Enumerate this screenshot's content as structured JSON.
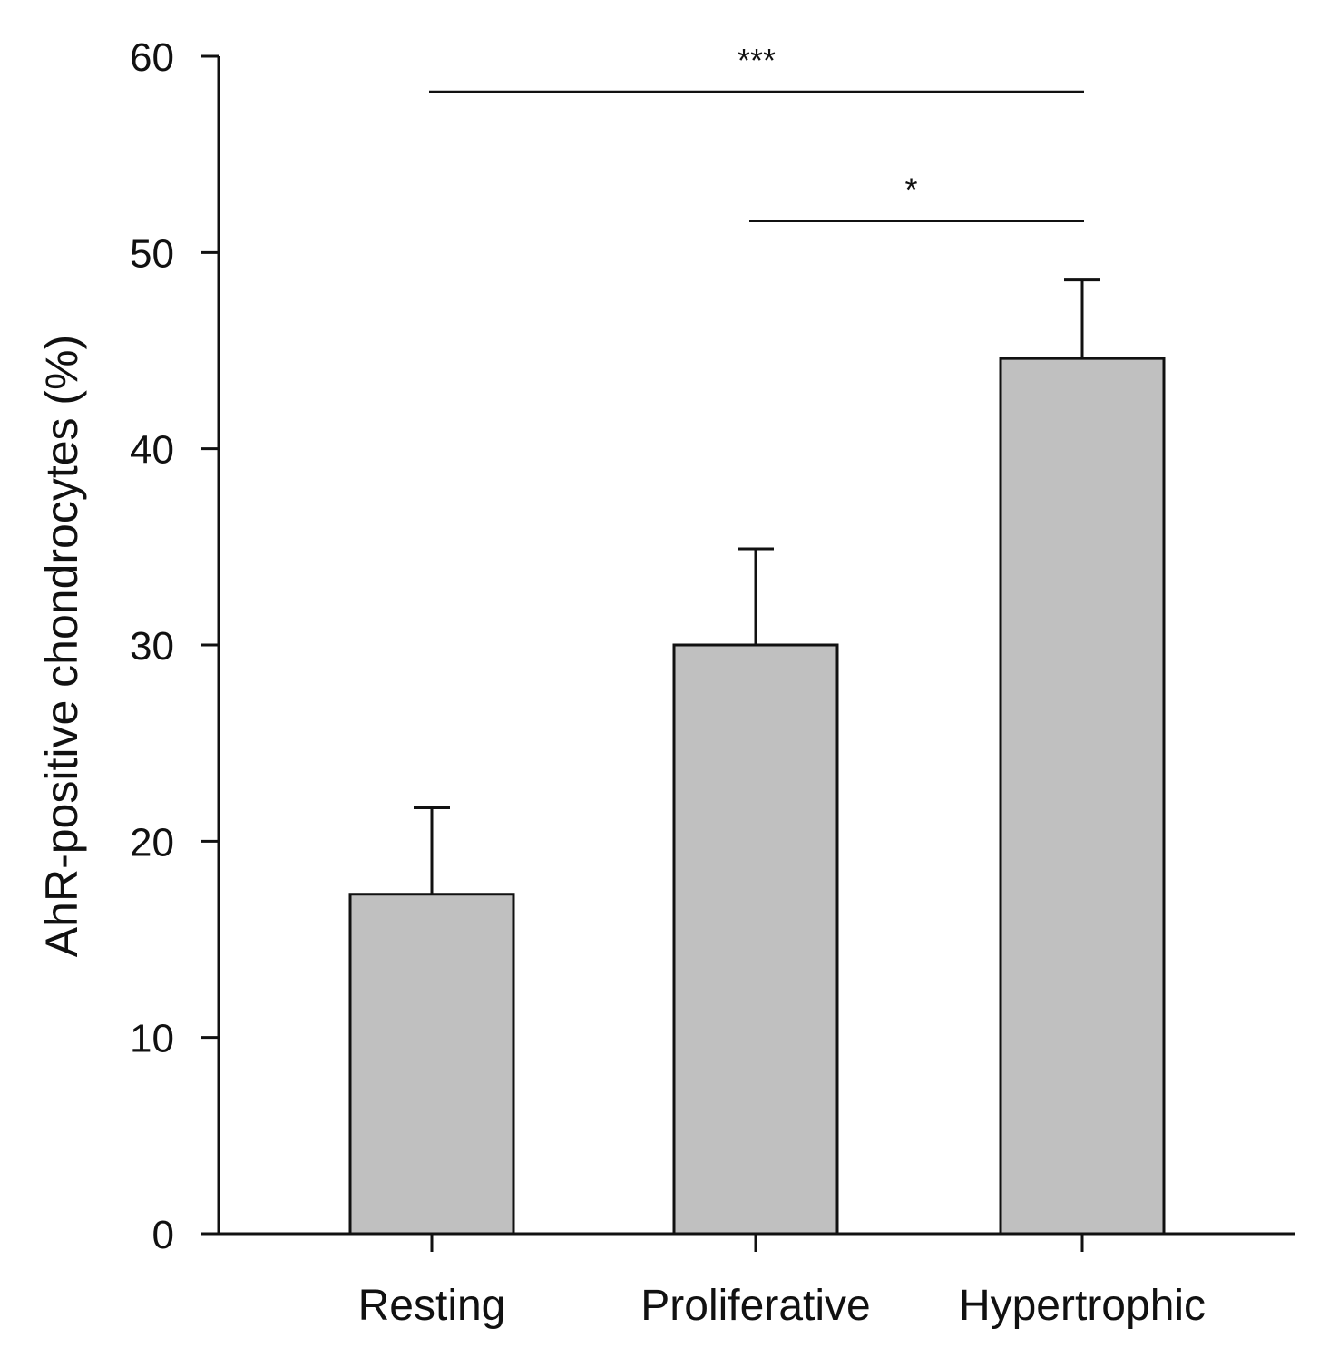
{
  "chart_data": {
    "type": "bar",
    "title": "",
    "xlabel": "",
    "ylabel": "AhR-positive chondrocytes (%)",
    "categories": [
      "Resting",
      "Proliferative",
      "Hypertrophic"
    ],
    "values": [
      17.3,
      30.0,
      44.6
    ],
    "errors": [
      4.4,
      4.9,
      4.0
    ],
    "ylim": [
      0,
      60
    ],
    "yticks": [
      "0",
      "10",
      "20",
      "30",
      "40",
      "50",
      "60"
    ],
    "bar_color": "#c0c0c0",
    "significance": [
      {
        "from": "Resting",
        "to": "Hypertrophic",
        "label": "***",
        "y": 58.2
      },
      {
        "from": "Proliferative",
        "to": "Hypertrophic",
        "label": "*",
        "y": 51.6
      }
    ]
  }
}
